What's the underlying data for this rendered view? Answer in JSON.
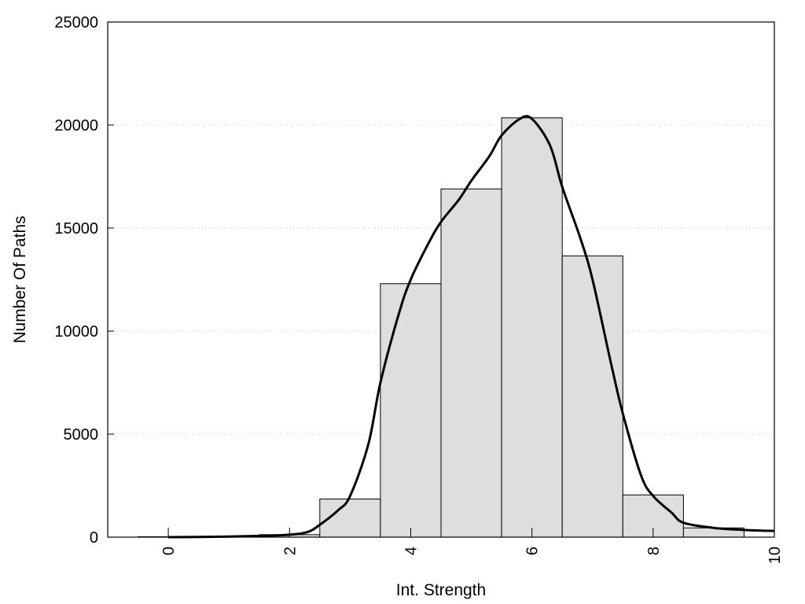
{
  "chart_data": {
    "type": "bar",
    "title": "",
    "xlabel": "Int. Strength",
    "ylabel": "Number Of Paths",
    "xlim": [
      -1,
      10
    ],
    "ylim": [
      0,
      25000
    ],
    "grid": true,
    "x_ticks": [
      0,
      2,
      4,
      6,
      8,
      10
    ],
    "y_ticks": [
      0,
      5000,
      10000,
      15000,
      20000,
      25000
    ],
    "x_tick_labels": [
      "0",
      "2",
      "4",
      "6",
      "8",
      "10"
    ],
    "y_tick_labels": [
      "0",
      "5000",
      "10000",
      "15000",
      "20000",
      "25000"
    ],
    "bar_width": 1,
    "categories": [
      0,
      1,
      2,
      3,
      4,
      5,
      6,
      7,
      8,
      9
    ],
    "values": [
      20,
      40,
      120,
      1850,
      12300,
      16900,
      20350,
      13650,
      2050,
      450
    ],
    "bar_color": "#dedede",
    "curve": {
      "x": [
        0,
        0.5,
        1,
        1.5,
        2,
        2.3,
        2.5,
        2.8,
        3,
        3.3,
        3.5,
        3.8,
        4,
        4.3,
        4.5,
        4.8,
        5,
        5.3,
        5.5,
        5.8,
        6,
        6.3,
        6.5,
        6.8,
        7,
        7.3,
        7.5,
        7.8,
        8,
        8.3,
        8.5,
        9,
        9.5,
        10
      ],
      "y": [
        0,
        10,
        30,
        60,
        120,
        250,
        600,
        1300,
        2000,
        4500,
        7500,
        10800,
        12500,
        14300,
        15300,
        16400,
        17300,
        18500,
        19500,
        20300,
        20300,
        19000,
        17000,
        14500,
        12500,
        8500,
        6000,
        3000,
        2000,
        1200,
        700,
        450,
        350,
        300
      ],
      "color": "#000000"
    }
  }
}
